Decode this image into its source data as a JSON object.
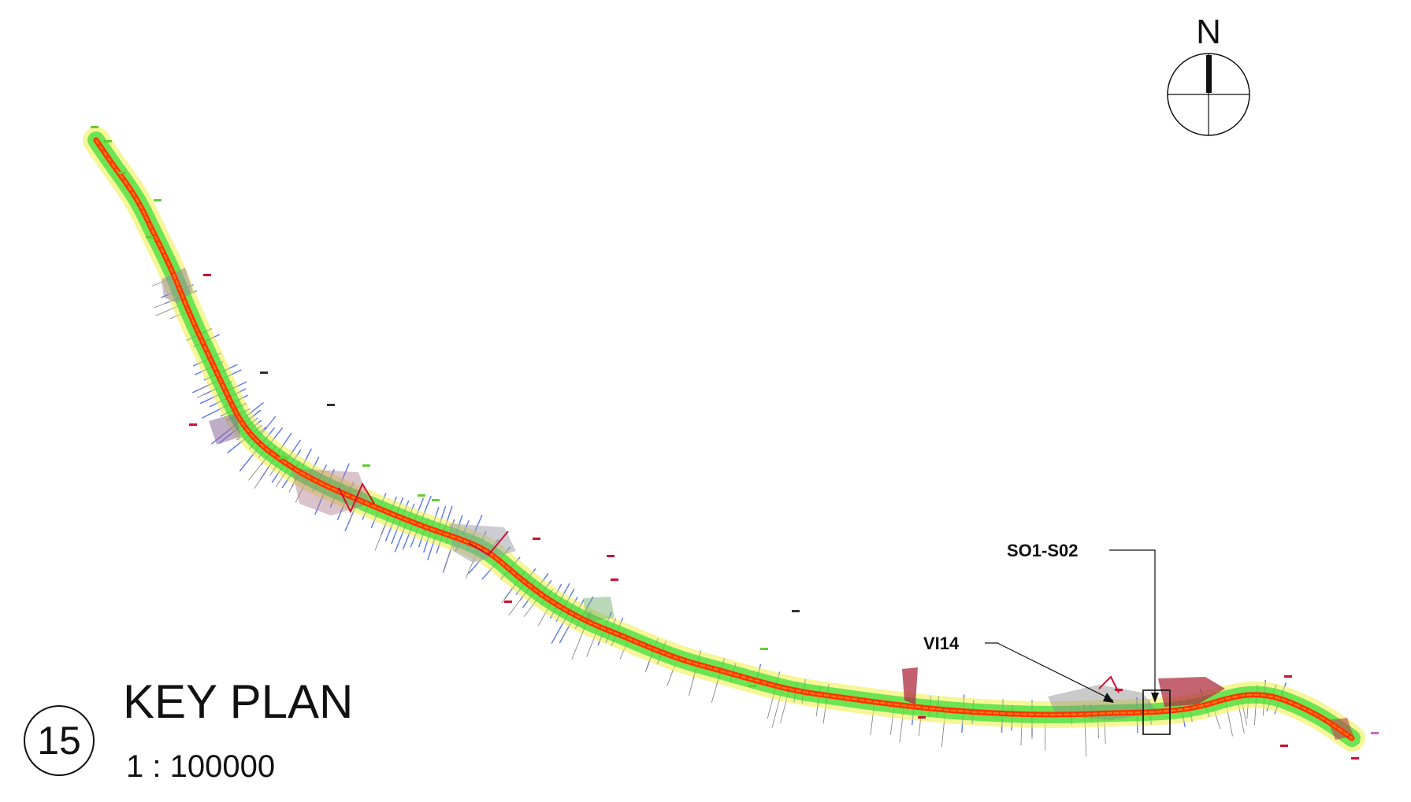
{
  "title_block": {
    "drawing_number": "15",
    "title": "KEY PLAN",
    "scale": "1 : 100000"
  },
  "north_arrow": {
    "label": "N",
    "icon": "north-arrow-icon"
  },
  "callouts": [
    {
      "label": "SO1-S02",
      "icon": "location-box-icon"
    },
    {
      "label": "VI14",
      "icon": "leader-arrow-icon"
    }
  ],
  "colors": {
    "alignment": "#ff3300",
    "corridor_green": "#33dd33",
    "corridor_yellow": "#eeee44",
    "sections_blue": "#3355ee",
    "structures_red": "#cc1133",
    "grey_detail": "#888888"
  }
}
